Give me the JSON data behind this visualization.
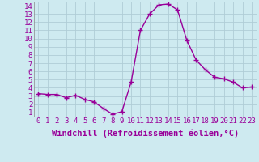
{
  "x": [
    0,
    1,
    2,
    3,
    4,
    5,
    6,
    7,
    8,
    9,
    10,
    11,
    12,
    13,
    14,
    15,
    16,
    17,
    18,
    19,
    20,
    21,
    22,
    23
  ],
  "y": [
    3.3,
    3.2,
    3.2,
    2.8,
    3.1,
    2.6,
    2.3,
    1.5,
    0.8,
    1.1,
    4.7,
    11.0,
    13.0,
    14.1,
    14.2,
    13.5,
    9.8,
    7.4,
    6.2,
    5.3,
    5.1,
    4.7,
    4.0,
    4.1
  ],
  "line_color": "#990099",
  "marker": "+",
  "marker_size": 4,
  "xlabel": "Windchill (Refroidissement éolien,°C)",
  "xlim": [
    -0.5,
    23.5
  ],
  "ylim": [
    0.5,
    14.5
  ],
  "xticks": [
    0,
    1,
    2,
    3,
    4,
    5,
    6,
    7,
    8,
    9,
    10,
    11,
    12,
    13,
    14,
    15,
    16,
    17,
    18,
    19,
    20,
    21,
    22,
    23
  ],
  "yticks": [
    1,
    2,
    3,
    4,
    5,
    6,
    7,
    8,
    9,
    10,
    11,
    12,
    13,
    14
  ],
  "background_color": "#ceeaf0",
  "grid_color": "#b0cdd6",
  "tick_fontsize": 6.5,
  "xlabel_fontsize": 7.5,
  "linewidth": 1.0,
  "markeredgewidth": 1.0
}
